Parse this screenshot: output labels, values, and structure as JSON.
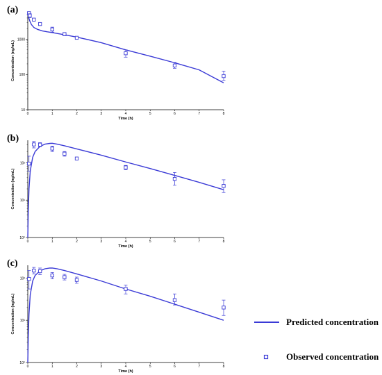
{
  "colors": {
    "series": "#3a3ad6",
    "axis": "#000000"
  },
  "legend": {
    "predicted": "Predicted concentration",
    "observed": "Observed concentration"
  },
  "chart_data": [
    {
      "panel": "(a)",
      "type": "line+scatter",
      "ylabel": "Concentration (ng/mL)",
      "xlabel": "Time (h)",
      "yscale": "log",
      "ylim": [
        10,
        6000
      ],
      "xlim": [
        0,
        8
      ],
      "xticks": [
        "0",
        "1",
        "2",
        "3",
        "4",
        "5",
        "6",
        "7",
        "8"
      ],
      "yticks": [
        {
          "v": 10,
          "t": "10"
        },
        {
          "v": 100,
          "t": "100"
        },
        {
          "v": 1000,
          "t": "1000"
        }
      ],
      "predicted": {
        "x": [
          0,
          0.03,
          0.08,
          0.15,
          0.25,
          0.4,
          0.6,
          0.8,
          1,
          1.5,
          2,
          3,
          4,
          5,
          6,
          7,
          8
        ],
        "y": [
          5200,
          4300,
          3300,
          2600,
          2150,
          1900,
          1720,
          1620,
          1540,
          1340,
          1150,
          800,
          500,
          330,
          215,
          135,
          58
        ]
      },
      "observed": [
        {
          "x": 0.05,
          "y": 5500,
          "lo": 5000,
          "hi": 6000
        },
        {
          "x": 0.083,
          "y": 4700,
          "lo": 4100,
          "hi": 5300
        },
        {
          "x": 0.25,
          "y": 3600,
          "lo": 3300,
          "hi": 3900
        },
        {
          "x": 0.5,
          "y": 2700,
          "lo": 2500,
          "hi": 2900
        },
        {
          "x": 1,
          "y": 1900,
          "lo": 1600,
          "hi": 2200
        },
        {
          "x": 1.5,
          "y": 1400,
          "lo": 1250,
          "hi": 1550
        },
        {
          "x": 2,
          "y": 1100,
          "lo": 1000,
          "hi": 1200
        },
        {
          "x": 4,
          "y": 400,
          "lo": 310,
          "hi": 500
        },
        {
          "x": 6,
          "y": 180,
          "lo": 150,
          "hi": 220
        },
        {
          "x": 8,
          "y": 90,
          "lo": 68,
          "hi": 125
        }
      ]
    },
    {
      "panel": "(b)",
      "type": "line+scatter",
      "ylabel": "Concentration (ng/mL)",
      "xlabel": "Time (h)",
      "yscale": "log",
      "ylim": [
        1,
        400
      ],
      "xlim": [
        0,
        8
      ],
      "xticks": [
        "0",
        "1",
        "2",
        "3",
        "4",
        "5",
        "6",
        "7",
        "8"
      ],
      "yticks": [
        {
          "v": 1,
          "t": "10⁰"
        },
        {
          "v": 10,
          "t": "10¹"
        },
        {
          "v": 100,
          "t": "10²"
        }
      ],
      "predicted": {
        "x": [
          0,
          0.02,
          0.05,
          0.1,
          0.2,
          0.3,
          0.5,
          0.7,
          0.9,
          1,
          1.2,
          1.5,
          2,
          3,
          4,
          5,
          6,
          7,
          8
        ],
        "y": [
          1,
          5,
          20,
          60,
          140,
          200,
          275,
          315,
          330,
          332,
          315,
          285,
          235,
          160,
          105,
          70,
          46,
          30,
          19
        ]
      },
      "observed": [
        {
          "x": 0.05,
          "y": 95,
          "lo": 60,
          "hi": 150
        },
        {
          "x": 0.25,
          "y": 310,
          "lo": 250,
          "hi": 370
        },
        {
          "x": 0.5,
          "y": 305,
          "lo": 270,
          "hi": 345
        },
        {
          "x": 1,
          "y": 240,
          "lo": 200,
          "hi": 280
        },
        {
          "x": 1.5,
          "y": 175,
          "lo": 150,
          "hi": 200
        },
        {
          "x": 2,
          "y": 130,
          "lo": 122,
          "hi": 138
        },
        {
          "x": 4,
          "y": 75,
          "lo": 65,
          "hi": 85
        },
        {
          "x": 6,
          "y": 37,
          "lo": 25,
          "hi": 55
        },
        {
          "x": 8,
          "y": 24,
          "lo": 16,
          "hi": 35
        }
      ]
    },
    {
      "panel": "(c)",
      "type": "line+scatter",
      "ylabel": "Concentration (ng/mL)",
      "xlabel": "Time (h)",
      "yscale": "log",
      "ylim": [
        1,
        200
      ],
      "xlim": [
        0,
        8
      ],
      "xticks": [
        "0",
        "1",
        "2",
        "3",
        "4",
        "5",
        "6",
        "7",
        "8"
      ],
      "yticks": [
        {
          "v": 1,
          "t": "10⁰"
        },
        {
          "v": 10,
          "t": "10¹"
        },
        {
          "v": 100,
          "t": "10²"
        }
      ],
      "predicted": {
        "x": [
          0,
          0.02,
          0.05,
          0.1,
          0.2,
          0.3,
          0.5,
          0.7,
          0.9,
          1,
          1.2,
          1.5,
          2,
          3,
          4,
          5,
          6,
          7,
          8
        ],
        "y": [
          1,
          4,
          14,
          40,
          85,
          115,
          148,
          165,
          172,
          172,
          165,
          150,
          125,
          85,
          55,
          37,
          24,
          15.5,
          10
        ]
      },
      "observed": [
        {
          "x": 0.05,
          "y": 95,
          "lo": 55,
          "hi": 150
        },
        {
          "x": 0.25,
          "y": 150,
          "lo": 125,
          "hi": 178
        },
        {
          "x": 0.5,
          "y": 145,
          "lo": 120,
          "hi": 172
        },
        {
          "x": 1,
          "y": 115,
          "lo": 95,
          "hi": 135
        },
        {
          "x": 1.5,
          "y": 105,
          "lo": 90,
          "hi": 122
        },
        {
          "x": 2,
          "y": 90,
          "lo": 75,
          "hi": 105
        },
        {
          "x": 4,
          "y": 55,
          "lo": 42,
          "hi": 68
        },
        {
          "x": 6,
          "y": 30,
          "lo": 23,
          "hi": 42
        },
        {
          "x": 8,
          "y": 20,
          "lo": 13,
          "hi": 30
        }
      ]
    }
  ]
}
